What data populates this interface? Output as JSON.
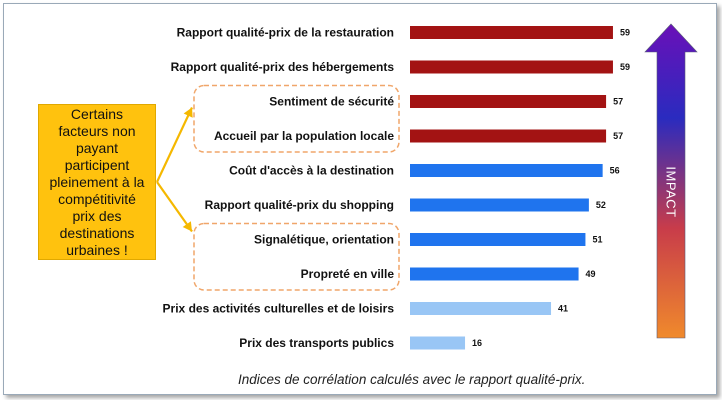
{
  "chart_data": {
    "type": "bar",
    "orientation": "horizontal",
    "categories": [
      "Rapport qualité-prix de la restauration",
      "Rapport qualité-prix des hébergements",
      "Sentiment de sécurité",
      "Accueil par la population  locale",
      "Coût d'accès à la destination",
      "Rapport qualité-prix du shopping",
      "Signalétique, orientation",
      "Propreté en ville",
      "Prix des activités culturelles et de loisirs",
      "Prix des transports publics"
    ],
    "values": [
      59,
      59,
      57,
      57,
      56,
      52,
      51,
      49,
      41,
      16
    ],
    "value_labels": [
      "59",
      "59",
      "57",
      "57",
      "56",
      "52",
      "51",
      "49",
      "41",
      "16"
    ],
    "colors": [
      "#a31313",
      "#a31313",
      "#a31313",
      "#a31313",
      "#1f74ee",
      "#1f74ee",
      "#1f74ee",
      "#1f74ee",
      "#99c6f5",
      "#99c6f5"
    ],
    "xlim": [
      0,
      60
    ],
    "grid": false,
    "legend": "none",
    "caption": "Indices de corrélation calculés avec le rapport qualité-prix."
  },
  "callout": {
    "text": "Certains facteurs non payant participent pleinement à la compétitivité prix des destinations urbaines !",
    "color": "#ffc20e"
  },
  "impact": {
    "label": "IMPACT",
    "gradient": [
      "#f08a2c",
      "#c83c4a",
      "#2a2bbf",
      "#6a10b8"
    ]
  },
  "highlight_groups": [
    {
      "from": "Sentiment de sécurité",
      "to": "Accueil par la population  locale",
      "color": "#f0a66a"
    },
    {
      "from": "Signalétique, orientation",
      "to": "Propreté en ville",
      "color": "#f0a66a"
    }
  ]
}
